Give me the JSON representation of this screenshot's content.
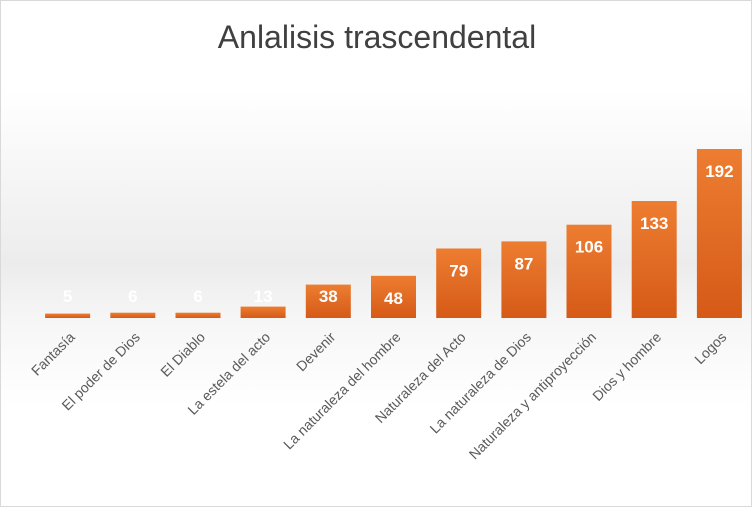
{
  "chart_data": {
    "type": "bar",
    "title": "Anlalisis trascendental",
    "categories": [
      "Fantasía",
      "El poder de Dios",
      "El Diablo",
      "La estela del acto",
      "Devenir",
      "La naturaleza del hombre",
      "Naturaleza del Acto",
      "La naturaleza de Dios",
      "Naturaleza y antiproyección",
      "Dios y hombre",
      "Logos"
    ],
    "values": [
      5,
      6,
      6,
      13,
      38,
      48,
      79,
      87,
      106,
      133,
      192
    ],
    "data_labels": true,
    "xlabel": "",
    "ylabel": "",
    "ylim": [
      0,
      200
    ],
    "grid": false,
    "legend": "none",
    "colors": {
      "bar_top": "#ED7D31",
      "bar_bottom": "#D55A17",
      "label": "#FFFFFF",
      "axis_text": "#595959"
    }
  }
}
